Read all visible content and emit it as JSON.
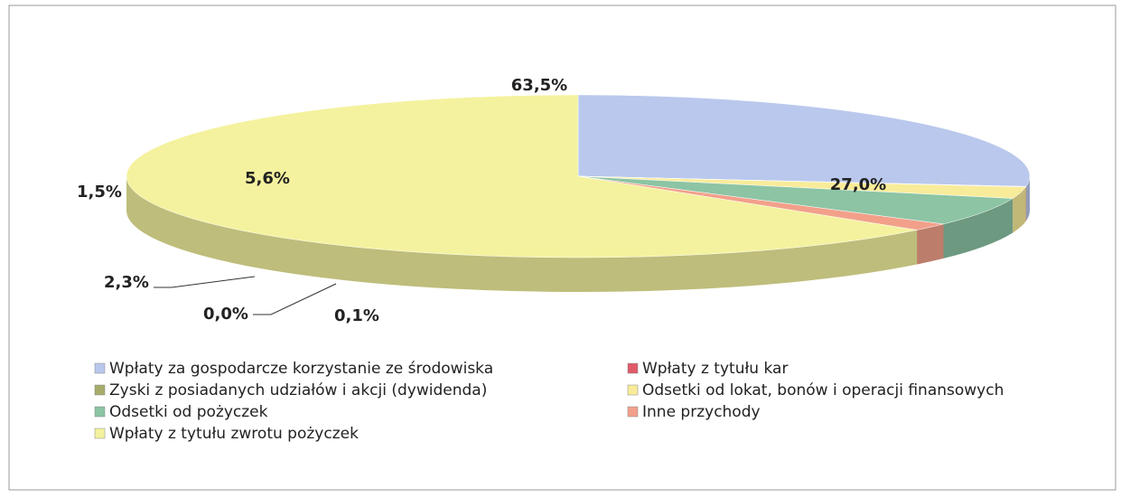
{
  "chart_data": {
    "type": "pie3d",
    "categories": [
      "Wpłaty za gospodarcze korzystanie ze środowiska",
      "Wpłaty z tytułu kar",
      "Zyski z posiadanych udziałów i akcji (dywidenda)",
      "Odsetki od lokat, bonów i operacji finansowych",
      "Odsetki od pożyczek",
      "Inne przychody",
      "Wpłaty z tytułu zwrotu pożyczek"
    ],
    "values": [
      27.0,
      0.1,
      0.0,
      2.3,
      5.6,
      1.5,
      63.5
    ],
    "value_labels": [
      "27,0%",
      "0,1%",
      "0,0%",
      "2,3%",
      "5,6%",
      "1,5%",
      "63,5%"
    ],
    "colors": [
      "#b9c8ec",
      "#e05a6a",
      "#a7ac6a",
      "#f8ec9a",
      "#8cc4a4",
      "#f2a08a",
      "#f4f29e"
    ],
    "legend": "bottom"
  }
}
